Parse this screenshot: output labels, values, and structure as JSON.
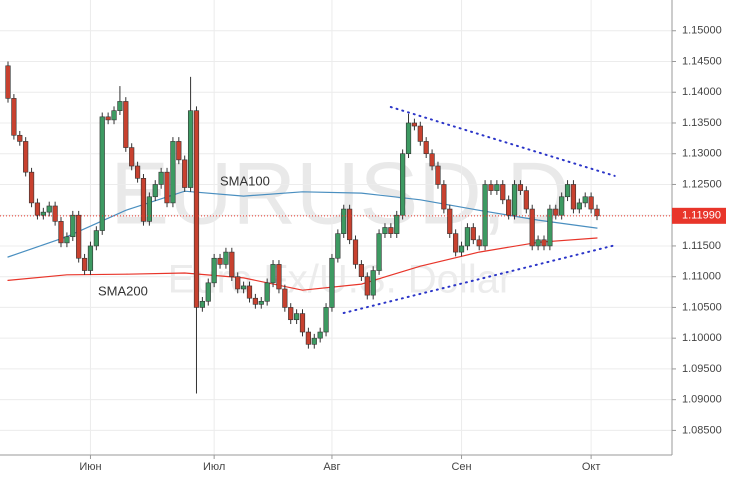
{
  "chart_data": {
    "type": "candlestick",
    "watermark": "EURUSD,D",
    "watermark_subtitle": "Euro Fx/U.S. Dollar",
    "categories": [
      null,
      null,
      null,
      null,
      null,
      null,
      null,
      null,
      null,
      null,
      null,
      null,
      null,
      null,
      "Июн",
      null,
      null,
      null,
      null,
      null,
      null,
      null,
      null,
      null,
      null,
      null,
      null,
      null,
      null,
      null,
      null,
      null,
      null,
      null,
      null,
      "Июл",
      null,
      null,
      null,
      null,
      null,
      null,
      null,
      null,
      null,
      null,
      null,
      null,
      null,
      null,
      null,
      null,
      null,
      null,
      null,
      "Авг",
      null,
      null,
      null,
      null,
      null,
      null,
      null,
      null,
      null,
      null,
      null,
      null,
      null,
      null,
      null,
      null,
      null,
      null,
      null,
      null,
      null,
      "Сен",
      null,
      null,
      null,
      null,
      null,
      null,
      null,
      null,
      null,
      null,
      null,
      null,
      null,
      null,
      null,
      null,
      null,
      null,
      null,
      null,
      null,
      "Окт",
      null
    ],
    "open": [
      1.1443,
      1.139,
      1.133,
      1.132,
      1.127,
      1.122,
      1.12,
      1.1205,
      1.1215,
      1.119,
      1.1155,
      1.1165,
      1.12,
      1.113,
      1.111,
      1.115,
      1.1175,
      1.136,
      1.1355,
      1.137,
      1.1385,
      1.131,
      1.128,
      1.126,
      1.119,
      1.123,
      1.125,
      1.127,
      1.122,
      1.132,
      1.129,
      1.1245,
      1.137,
      1.105,
      1.106,
      1.109,
      1.113,
      1.112,
      1.114,
      1.11,
      1.108,
      1.1085,
      1.1065,
      1.1055,
      1.106,
      1.109,
      1.112,
      1.108,
      1.105,
      1.103,
      1.104,
      1.101,
      1.099,
      1.1,
      1.101,
      1.105,
      1.113,
      1.117,
      1.121,
      1.116,
      1.112,
      1.11,
      1.107,
      1.111,
      1.117,
      1.118,
      1.117,
      1.12,
      1.13,
      1.135,
      1.1345,
      1.132,
      1.13,
      1.128,
      1.125,
      1.121,
      1.117,
      1.114,
      1.115,
      1.118,
      1.116,
      1.115,
      1.125,
      1.124,
      1.125,
      1.1225,
      1.12,
      1.125,
      1.124,
      1.121,
      1.115,
      1.116,
      1.115,
      1.121,
      1.12,
      1.123,
      1.125,
      1.121,
      1.122,
      1.123,
      1.121
    ],
    "high": [
      1.145,
      1.1397,
      1.1337,
      1.1327,
      1.1277,
      1.1227,
      1.1212,
      1.1222,
      1.1222,
      1.1197,
      1.1172,
      1.1207,
      1.1207,
      1.1137,
      1.1157,
      1.1182,
      1.1367,
      1.1367,
      1.1377,
      1.141,
      1.1392,
      1.1317,
      1.1287,
      1.1267,
      1.1237,
      1.1257,
      1.1277,
      1.1277,
      1.1327,
      1.1327,
      1.1297,
      1.1425,
      1.1377,
      1.1067,
      1.1097,
      1.1137,
      1.1137,
      1.1147,
      1.1147,
      1.1107,
      1.1092,
      1.1092,
      1.1072,
      1.1067,
      1.1097,
      1.1127,
      1.1127,
      1.1087,
      1.1057,
      1.1047,
      1.1047,
      1.1017,
      1.1007,
      1.1017,
      1.1057,
      1.1137,
      1.1177,
      1.1217,
      1.1217,
      1.1167,
      1.1127,
      1.1107,
      1.1117,
      1.1177,
      1.1187,
      1.1187,
      1.1207,
      1.1307,
      1.1365,
      1.1357,
      1.1352,
      1.1327,
      1.1307,
      1.1287,
      1.1257,
      1.1217,
      1.1177,
      1.1157,
      1.1187,
      1.1187,
      1.1167,
      1.1257,
      1.1257,
      1.1257,
      1.1257,
      1.1232,
      1.1257,
      1.1257,
      1.1247,
      1.1217,
      1.1167,
      1.1167,
      1.1217,
      1.1217,
      1.1237,
      1.1257,
      1.1257,
      1.1227,
      1.1237,
      1.1237,
      1.1217
    ],
    "low": [
      1.1383,
      1.1323,
      1.1313,
      1.1263,
      1.1213,
      1.1193,
      1.1193,
      1.1198,
      1.1183,
      1.1148,
      1.1148,
      1.1158,
      1.1123,
      1.1103,
      1.1103,
      1.1143,
      1.1168,
      1.1348,
      1.1348,
      1.1363,
      1.1303,
      1.1273,
      1.1253,
      1.1183,
      1.1183,
      1.1223,
      1.1243,
      1.1213,
      1.1213,
      1.1283,
      1.1238,
      1.1238,
      1.091,
      1.1043,
      1.1053,
      1.1083,
      1.1113,
      1.1113,
      1.1093,
      1.1073,
      1.1073,
      1.1058,
      1.1048,
      1.1048,
      1.1053,
      1.1083,
      1.1073,
      1.1043,
      1.1023,
      1.1023,
      1.1003,
      1.0983,
      1.0983,
      1.0993,
      1.1003,
      1.1043,
      1.1123,
      1.1163,
      1.1153,
      1.1113,
      1.1093,
      1.1063,
      1.1063,
      1.1103,
      1.1163,
      1.1163,
      1.1163,
      1.1193,
      1.1293,
      1.1338,
      1.1313,
      1.1293,
      1.1273,
      1.1243,
      1.1203,
      1.1163,
      1.1133,
      1.1133,
      1.1143,
      1.1153,
      1.1143,
      1.1143,
      1.1233,
      1.1233,
      1.1218,
      1.1193,
      1.1193,
      1.1233,
      1.1203,
      1.1143,
      1.1143,
      1.1143,
      1.1143,
      1.1193,
      1.1193,
      1.1223,
      1.1203,
      1.1203,
      1.1213,
      1.1203,
      1.1192
    ],
    "close": [
      1.139,
      1.133,
      1.132,
      1.127,
      1.122,
      1.12,
      1.1205,
      1.1215,
      1.119,
      1.1155,
      1.1165,
      1.12,
      1.113,
      1.111,
      1.115,
      1.1175,
      1.136,
      1.1355,
      1.137,
      1.1385,
      1.131,
      1.128,
      1.126,
      1.119,
      1.123,
      1.125,
      1.127,
      1.122,
      1.132,
      1.129,
      1.1245,
      1.137,
      1.105,
      1.106,
      1.109,
      1.113,
      1.112,
      1.114,
      1.11,
      1.108,
      1.1085,
      1.1065,
      1.1055,
      1.106,
      1.109,
      1.112,
      1.108,
      1.105,
      1.103,
      1.104,
      1.101,
      1.099,
      1.1,
      1.101,
      1.105,
      1.113,
      1.117,
      1.121,
      1.116,
      1.112,
      1.11,
      1.107,
      1.111,
      1.117,
      1.118,
      1.117,
      1.12,
      1.13,
      1.135,
      1.1345,
      1.132,
      1.13,
      1.128,
      1.125,
      1.121,
      1.117,
      1.114,
      1.115,
      1.118,
      1.116,
      1.115,
      1.125,
      1.124,
      1.125,
      1.1225,
      1.12,
      1.125,
      1.124,
      1.121,
      1.115,
      1.116,
      1.115,
      1.121,
      1.12,
      1.123,
      1.125,
      1.121,
      1.122,
      1.123,
      1.121,
      1.1199
    ],
    "up_color": "#3d9a62",
    "down_color": "#c8412f",
    "overlays": [
      {
        "name": "SMA100",
        "color": "#4a8fc0",
        "x": [
          0,
          10,
          20,
          30,
          40,
          50,
          60,
          70,
          80,
          90,
          100
        ],
        "values": [
          1.1132,
          1.1165,
          1.1208,
          1.1239,
          1.1231,
          1.1238,
          1.1236,
          1.1225,
          1.1208,
          1.1192,
          1.1179
        ]
      },
      {
        "name": "SMA200",
        "color": "#e8352a",
        "x": [
          0,
          10,
          20,
          30,
          40,
          50,
          60,
          70,
          80,
          90,
          100
        ],
        "values": [
          1.1094,
          1.1103,
          1.1104,
          1.1106,
          1.1098,
          1.1078,
          1.1088,
          1.1117,
          1.114,
          1.1156,
          1.1163
        ]
      }
    ],
    "trendlines": [
      {
        "color": "#2b35c8",
        "x": [
          65,
          103
        ],
        "values": [
          1.1376,
          1.1264
        ]
      },
      {
        "color": "#2b35c8",
        "x": [
          57,
          103
        ],
        "values": [
          1.1041,
          1.1151
        ]
      }
    ],
    "last_price": {
      "value": 1.1199,
      "label": "1.11990",
      "color": "#e8352a"
    },
    "ylim": [
      1.081,
      1.155
    ],
    "yticks": [
      {
        "value": 1.15,
        "label": "1.15000"
      },
      {
        "value": 1.145,
        "label": "1.14500"
      },
      {
        "value": 1.14,
        "label": "1.14000"
      },
      {
        "value": 1.135,
        "label": "1.13500"
      },
      {
        "value": 1.13,
        "label": "1.13000"
      },
      {
        "value": 1.125,
        "label": "1.12500"
      },
      {
        "value": 1.12,
        "label": "1.12000"
      },
      {
        "value": 1.115,
        "label": "1.11500"
      },
      {
        "value": 1.11,
        "label": "1.11000"
      },
      {
        "value": 1.105,
        "label": "1.10500"
      },
      {
        "value": 1.1,
        "label": "1.10000"
      },
      {
        "value": 1.095,
        "label": "1.09500"
      },
      {
        "value": 1.09,
        "label": "1.09000"
      },
      {
        "value": 1.085,
        "label": "1.08500"
      }
    ],
    "grid": true
  }
}
